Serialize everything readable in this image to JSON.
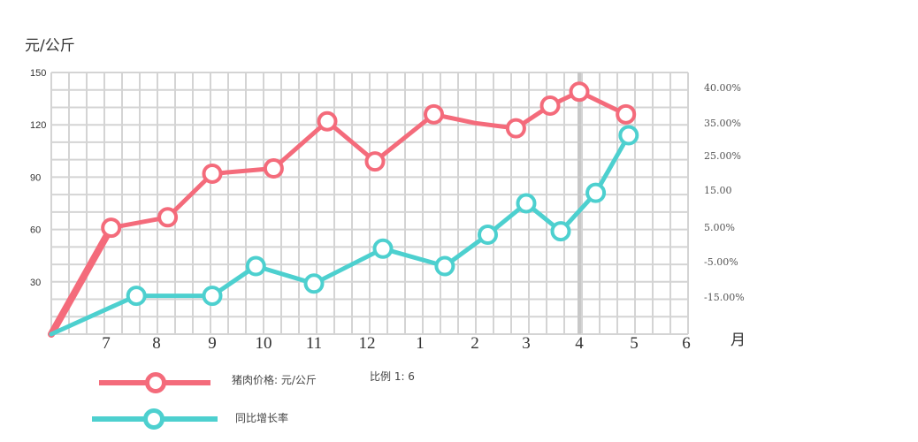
{
  "chart_data": {
    "type": "line",
    "ylabel": "元/公斤",
    "xlabel": "月",
    "categories": [
      "7",
      "8",
      "9",
      "10",
      "11",
      "12",
      "1",
      "2",
      "3",
      "4",
      "5",
      "6"
    ],
    "y_ticks": [
      "150",
      "120",
      "90",
      "60",
      "30"
    ],
    "y_right_ticks": [
      "40.00%",
      "35.00%",
      "25.00%",
      "15.00",
      "5.00%",
      "-5.00%",
      "-15.00%"
    ],
    "ylim": [
      0,
      150
    ],
    "scale_note": "比例 1: 6",
    "series": [
      {
        "name": "猪肉价格: 元/公斤",
        "color": "#F46B7B",
        "points": [
          [
            6.0,
            0
          ],
          [
            7.1,
            61
          ],
          [
            8.2,
            67
          ],
          [
            9.0,
            92
          ],
          [
            10.2,
            95
          ],
          [
            11.25,
            122
          ],
          [
            12.15,
            99
          ],
          [
            13.25,
            126
          ],
          [
            14.0,
            121
          ],
          [
            14.8,
            118
          ],
          [
            15.45,
            131
          ],
          [
            16.0,
            139
          ],
          [
            16.85,
            126
          ]
        ]
      },
      {
        "name": "同比增长率",
        "color": "#4DD0CF",
        "points": [
          [
            6.0,
            0
          ],
          [
            7.6,
            22
          ],
          [
            9.0,
            22
          ],
          [
            9.85,
            39
          ],
          [
            11.0,
            29
          ],
          [
            12.3,
            49
          ],
          [
            13.45,
            39
          ],
          [
            14.25,
            57
          ],
          [
            15.0,
            75
          ],
          [
            15.65,
            59
          ],
          [
            16.3,
            81
          ],
          [
            16.9,
            114
          ]
        ]
      }
    ]
  }
}
